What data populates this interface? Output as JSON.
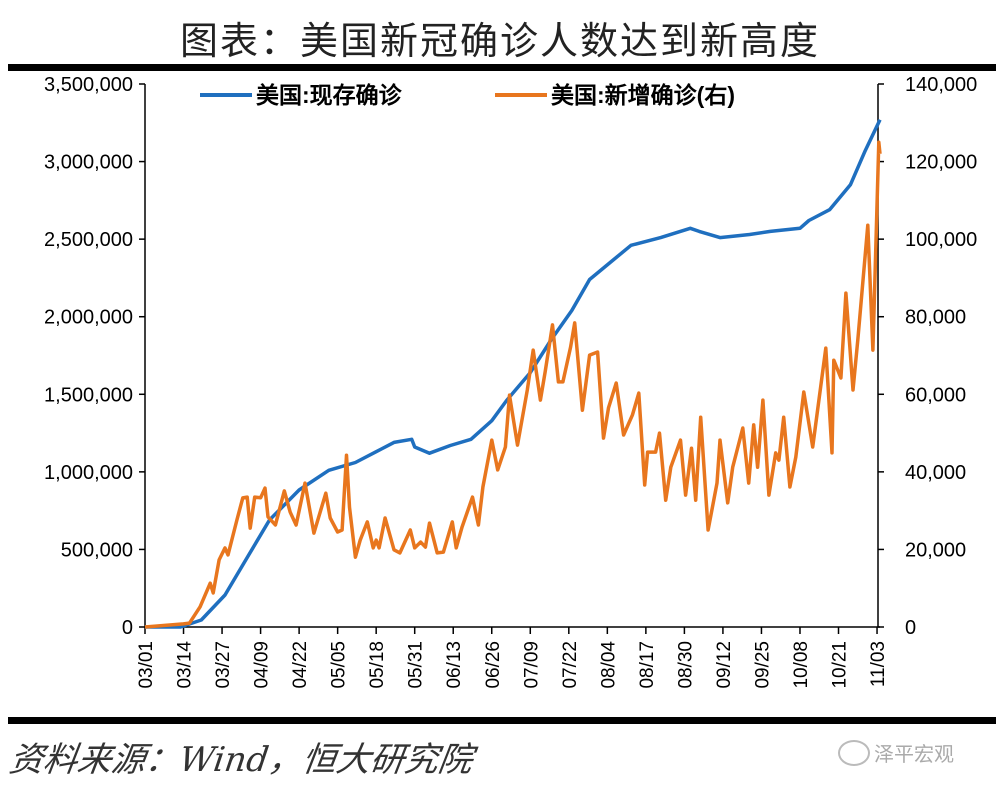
{
  "header": {
    "title": "图表：美国新冠确诊人数达到新高度"
  },
  "footer": {
    "source": "资料来源：Wind，恒大研究院",
    "watermark": "泽平宏观",
    "watermark_icon": "wechat-icon"
  },
  "chart_data": {
    "type": "line",
    "title": "图表：美国新冠确诊人数达到新高度",
    "xlabel": "",
    "ylabel": "",
    "x_unit": "days since 03/01",
    "x_range": [
      0,
      248
    ],
    "x_ticks": [
      {
        "day": 0,
        "label": "03/01"
      },
      {
        "day": 13,
        "label": "03/14"
      },
      {
        "day": 26,
        "label": "03/27"
      },
      {
        "day": 39,
        "label": "04/09"
      },
      {
        "day": 52,
        "label": "04/22"
      },
      {
        "day": 65,
        "label": "05/05"
      },
      {
        "day": 78,
        "label": "05/18"
      },
      {
        "day": 91,
        "label": "05/31"
      },
      {
        "day": 104,
        "label": "06/13"
      },
      {
        "day": 117,
        "label": "06/26"
      },
      {
        "day": 130,
        "label": "07/09"
      },
      {
        "day": 143,
        "label": "07/22"
      },
      {
        "day": 156,
        "label": "08/04"
      },
      {
        "day": 169,
        "label": "08/17"
      },
      {
        "day": 182,
        "label": "08/30"
      },
      {
        "day": 195,
        "label": "09/12"
      },
      {
        "day": 208,
        "label": "09/25"
      },
      {
        "day": 221,
        "label": "10/08"
      },
      {
        "day": 234,
        "label": "10/21"
      },
      {
        "day": 247,
        "label": "11/03"
      }
    ],
    "y_left": {
      "range": [
        0,
        3500000
      ],
      "ticks": [
        0,
        500000,
        1000000,
        1500000,
        2000000,
        2500000,
        3000000,
        3500000
      ],
      "tick_labels": [
        "0",
        "500,000",
        "1,000,000",
        "1,500,000",
        "2,000,000",
        "2,500,000",
        "3,000,000",
        "3,500,000"
      ]
    },
    "y_right": {
      "range": [
        0,
        140000
      ],
      "ticks": [
        0,
        20000,
        40000,
        60000,
        80000,
        100000,
        120000,
        140000
      ],
      "tick_labels": [
        "0",
        "20,000",
        "40,000",
        "60,000",
        "80,000",
        "100,000",
        "120,000",
        "140,000"
      ]
    },
    "legend": {
      "placement": "top-center"
    },
    "grid": false,
    "series": [
      {
        "name": "美国:现存确诊",
        "axis": "left",
        "color": "#1f6fbf",
        "points": [
          [
            0,
            0
          ],
          [
            12,
            0
          ],
          [
            19,
            45000
          ],
          [
            27,
            206000
          ],
          [
            35,
            464000
          ],
          [
            42,
            690000
          ],
          [
            52,
            883000
          ],
          [
            62,
            1010000
          ],
          [
            71,
            1060000
          ],
          [
            78,
            1130000
          ],
          [
            84,
            1190000
          ],
          [
            90,
            1210000
          ],
          [
            91,
            1160000
          ],
          [
            96,
            1120000
          ],
          [
            103,
            1170000
          ],
          [
            110,
            1210000
          ],
          [
            117,
            1330000
          ],
          [
            122,
            1460000
          ],
          [
            130,
            1640000
          ],
          [
            137,
            1850000
          ],
          [
            144,
            2040000
          ],
          [
            150,
            2240000
          ],
          [
            157,
            2350000
          ],
          [
            164,
            2460000
          ],
          [
            174,
            2510000
          ],
          [
            184,
            2570000
          ],
          [
            187,
            2550000
          ],
          [
            194,
            2510000
          ],
          [
            204,
            2530000
          ],
          [
            211,
            2550000
          ],
          [
            221,
            2570000
          ],
          [
            224,
            2620000
          ],
          [
            231,
            2690000
          ],
          [
            238,
            2850000
          ],
          [
            243,
            3070000
          ],
          [
            248,
            3270000
          ]
        ]
      },
      {
        "name": "美国:新增确诊(右)",
        "axis": "right",
        "color": "#e8761e",
        "points": [
          [
            0,
            0
          ],
          [
            13,
            800
          ],
          [
            15,
            1000
          ],
          [
            18.6,
            5200
          ],
          [
            22,
            11300
          ],
          [
            23,
            8800
          ],
          [
            25,
            17300
          ],
          [
            27,
            20400
          ],
          [
            28,
            18600
          ],
          [
            31,
            27600
          ],
          [
            33,
            33300
          ],
          [
            34.5,
            33500
          ],
          [
            35.5,
            25500
          ],
          [
            37,
            33500
          ],
          [
            39,
            33300
          ],
          [
            40.5,
            35800
          ],
          [
            41.5,
            28400
          ],
          [
            44,
            26300
          ],
          [
            47,
            35100
          ],
          [
            49,
            29600
          ],
          [
            51,
            26300
          ],
          [
            54,
            37100
          ],
          [
            57,
            24200
          ],
          [
            59,
            29400
          ],
          [
            61,
            34500
          ],
          [
            62.5,
            28100
          ],
          [
            65,
            24500
          ],
          [
            66.5,
            25000
          ],
          [
            68,
            44300
          ],
          [
            69,
            30900
          ],
          [
            71,
            18000
          ],
          [
            72.6,
            22400
          ],
          [
            75,
            27100
          ],
          [
            77,
            20400
          ],
          [
            78,
            22400
          ],
          [
            79,
            20400
          ],
          [
            81,
            28100
          ],
          [
            84,
            19900
          ],
          [
            86,
            19100
          ],
          [
            89.5,
            25000
          ],
          [
            91,
            20400
          ],
          [
            93,
            21900
          ],
          [
            94.6,
            20600
          ],
          [
            96,
            26800
          ],
          [
            98.6,
            19100
          ],
          [
            100.7,
            19300
          ],
          [
            103.7,
            27100
          ],
          [
            105,
            20400
          ],
          [
            107,
            25800
          ],
          [
            110.5,
            33500
          ],
          [
            112.5,
            26300
          ],
          [
            114,
            36100
          ],
          [
            117,
            48200
          ],
          [
            119,
            40500
          ],
          [
            121.6,
            46400
          ],
          [
            123,
            59800
          ],
          [
            125.7,
            46900
          ],
          [
            129,
            61100
          ],
          [
            131,
            71400
          ],
          [
            133.4,
            58500
          ],
          [
            135,
            65700
          ],
          [
            137.5,
            77900
          ],
          [
            139.5,
            63200
          ],
          [
            141,
            63200
          ],
          [
            143.6,
            72200
          ],
          [
            145,
            78400
          ],
          [
            147.6,
            55900
          ],
          [
            150,
            70100
          ],
          [
            152.7,
            70900
          ],
          [
            154.7,
            48700
          ],
          [
            156.4,
            56500
          ],
          [
            159,
            62900
          ],
          [
            161.5,
            49500
          ],
          [
            164.5,
            54700
          ],
          [
            166.6,
            60300
          ],
          [
            168.6,
            36600
          ],
          [
            169.6,
            45100
          ],
          [
            172.3,
            45100
          ],
          [
            173.6,
            50000
          ],
          [
            175.7,
            32700
          ],
          [
            177.4,
            41200
          ],
          [
            180.7,
            48200
          ],
          [
            182.4,
            34000
          ],
          [
            184.4,
            46100
          ],
          [
            185.8,
            32700
          ],
          [
            187.5,
            54100
          ],
          [
            190,
            25000
          ],
          [
            193,
            37100
          ],
          [
            194,
            48200
          ],
          [
            196.6,
            32000
          ],
          [
            198.3,
            41200
          ],
          [
            201.7,
            51300
          ],
          [
            203.7,
            37100
          ],
          [
            205.4,
            52100
          ],
          [
            206.7,
            41200
          ],
          [
            208.5,
            58500
          ],
          [
            210.5,
            34000
          ],
          [
            212.8,
            44900
          ],
          [
            213.9,
            43000
          ],
          [
            215.5,
            54100
          ],
          [
            217.6,
            36100
          ],
          [
            219.6,
            43800
          ],
          [
            222.3,
            60600
          ],
          [
            225.3,
            46400
          ],
          [
            229.7,
            71900
          ],
          [
            231.8,
            44900
          ],
          [
            232.4,
            68800
          ],
          [
            234.8,
            64200
          ],
          [
            236.5,
            86100
          ],
          [
            238.9,
            61100
          ],
          [
            240.5,
            74000
          ],
          [
            243.9,
            103600
          ],
          [
            245.6,
            71400
          ],
          [
            247.6,
            125000
          ],
          [
            248,
            122000
          ]
        ]
      }
    ]
  }
}
